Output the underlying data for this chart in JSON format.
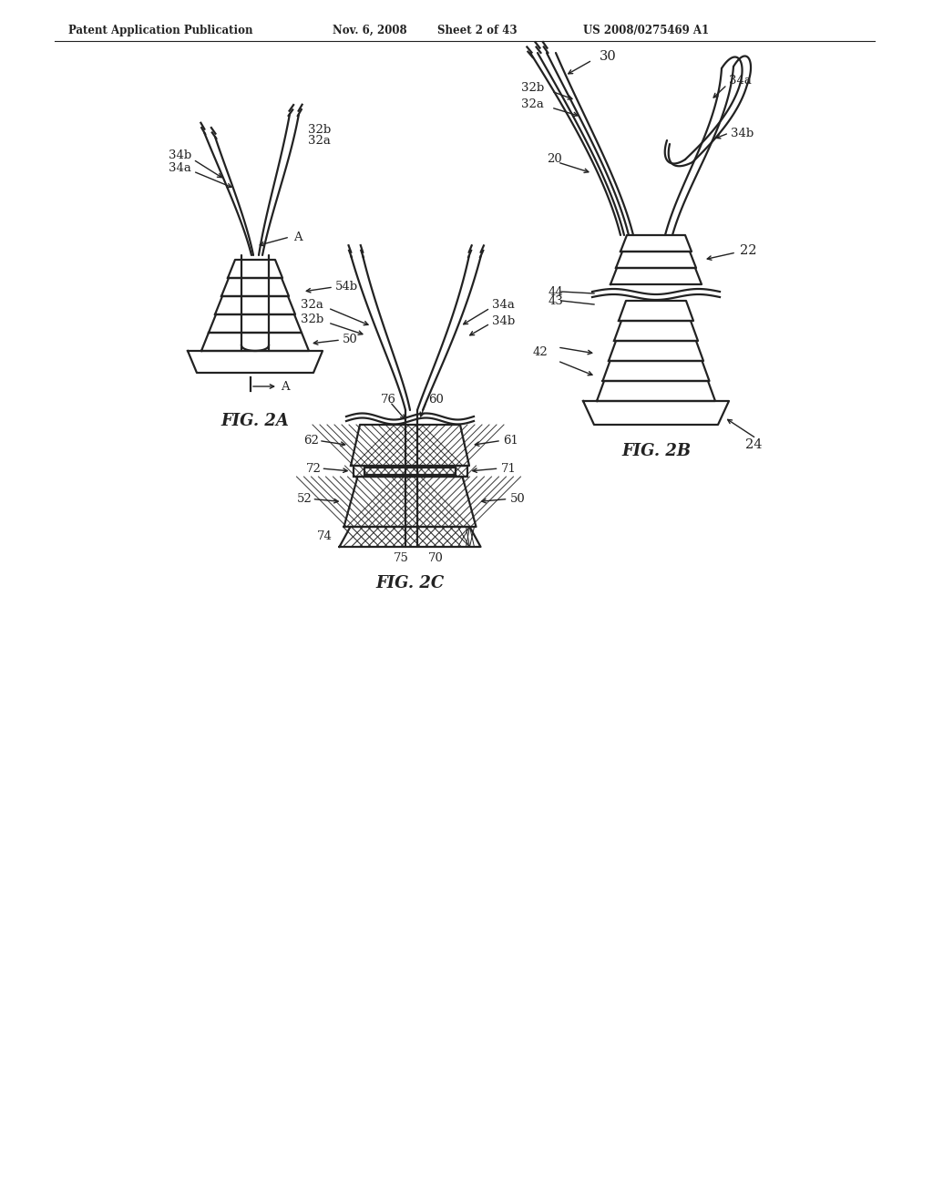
{
  "bg_color": "#ffffff",
  "line_color": "#222222",
  "header_text": "Patent Application Publication",
  "header_date": "Nov. 6, 2008",
  "header_sheet": "Sheet 2 of 43",
  "header_patent": "US 2008/0275469 A1",
  "fig2a_label": "FIG. 2A",
  "fig2b_label": "FIG. 2B",
  "fig2c_label": "FIG. 2C"
}
